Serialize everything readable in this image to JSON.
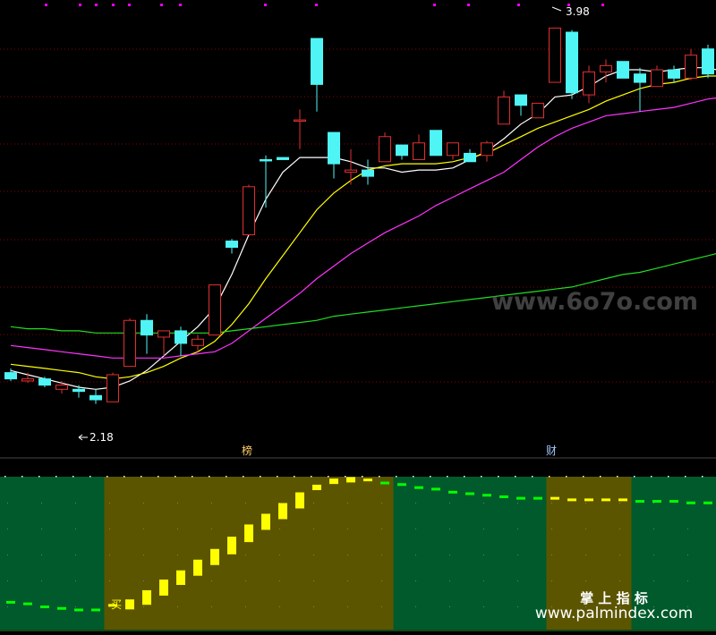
{
  "chart_data": [
    {
      "type": "candlestick",
      "title": "",
      "price_high_label": "3.98",
      "price_low_label": "2.18",
      "markers": [
        "榜",
        "财"
      ],
      "ylim": [
        2.05,
        4.05
      ],
      "candles": [
        {
          "o": 2.33,
          "h": 2.35,
          "l": 2.29,
          "c": 2.3,
          "up": false
        },
        {
          "o": 2.29,
          "h": 2.33,
          "l": 2.28,
          "c": 2.3,
          "up": true
        },
        {
          "o": 2.3,
          "h": 2.31,
          "l": 2.26,
          "c": 2.27,
          "up": false
        },
        {
          "o": 2.25,
          "h": 2.29,
          "l": 2.23,
          "c": 2.27,
          "up": true
        },
        {
          "o": 2.25,
          "h": 2.27,
          "l": 2.21,
          "c": 2.24,
          "up": false
        },
        {
          "o": 2.22,
          "h": 2.25,
          "l": 2.18,
          "c": 2.2,
          "up": false
        },
        {
          "o": 2.19,
          "h": 2.33,
          "l": 2.19,
          "c": 2.32,
          "up": true
        },
        {
          "o": 2.36,
          "h": 2.59,
          "l": 2.36,
          "c": 2.58,
          "up": true
        },
        {
          "o": 2.58,
          "h": 2.61,
          "l": 2.42,
          "c": 2.51,
          "up": false
        },
        {
          "o": 2.5,
          "h": 2.53,
          "l": 2.41,
          "c": 2.53,
          "up": true
        },
        {
          "o": 2.53,
          "h": 2.55,
          "l": 2.41,
          "c": 2.47,
          "up": false
        },
        {
          "o": 2.46,
          "h": 2.51,
          "l": 2.43,
          "c": 2.49,
          "up": true
        },
        {
          "o": 2.51,
          "h": 2.75,
          "l": 2.51,
          "c": 2.75,
          "up": true
        },
        {
          "o": 2.96,
          "h": 2.97,
          "l": 2.9,
          "c": 2.93,
          "up": false
        },
        {
          "o": 2.99,
          "h": 3.23,
          "l": 2.99,
          "c": 3.22,
          "up": true
        },
        {
          "o": 3.35,
          "h": 3.37,
          "l": 3.12,
          "c": 3.35,
          "up": false
        },
        {
          "o": 3.36,
          "h": 3.36,
          "l": 3.35,
          "c": 3.35,
          "up": false
        },
        {
          "o": 3.54,
          "h": 3.59,
          "l": 3.4,
          "c": 3.54,
          "up": true
        },
        {
          "o": 3.93,
          "h": 3.93,
          "l": 3.58,
          "c": 3.71,
          "up": false
        },
        {
          "o": 3.48,
          "h": 3.48,
          "l": 3.26,
          "c": 3.33,
          "up": false
        },
        {
          "o": 3.29,
          "h": 3.4,
          "l": 3.23,
          "c": 3.3,
          "up": true
        },
        {
          "o": 3.3,
          "h": 3.35,
          "l": 3.23,
          "c": 3.27,
          "up": false
        },
        {
          "o": 3.34,
          "h": 3.48,
          "l": 3.34,
          "c": 3.46,
          "up": true
        },
        {
          "o": 3.42,
          "h": 3.42,
          "l": 3.35,
          "c": 3.37,
          "up": false
        },
        {
          "o": 3.35,
          "h": 3.47,
          "l": 3.35,
          "c": 3.43,
          "up": true
        },
        {
          "o": 3.49,
          "h": 3.49,
          "l": 3.37,
          "c": 3.37,
          "up": false
        },
        {
          "o": 3.37,
          "h": 3.43,
          "l": 3.35,
          "c": 3.43,
          "up": true
        },
        {
          "o": 3.38,
          "h": 3.4,
          "l": 3.34,
          "c": 3.34,
          "up": false
        },
        {
          "o": 3.37,
          "h": 3.44,
          "l": 3.34,
          "c": 3.43,
          "up": true
        },
        {
          "o": 3.52,
          "h": 3.68,
          "l": 3.52,
          "c": 3.65,
          "up": true
        },
        {
          "o": 3.66,
          "h": 3.66,
          "l": 3.56,
          "c": 3.61,
          "up": false
        },
        {
          "o": 3.55,
          "h": 3.62,
          "l": 3.55,
          "c": 3.62,
          "up": true
        },
        {
          "o": 3.72,
          "h": 3.98,
          "l": 3.72,
          "c": 3.98,
          "up": true
        },
        {
          "o": 3.96,
          "h": 3.97,
          "l": 3.64,
          "c": 3.67,
          "up": false
        },
        {
          "o": 3.66,
          "h": 3.8,
          "l": 3.62,
          "c": 3.77,
          "up": true
        },
        {
          "o": 3.77,
          "h": 3.83,
          "l": 3.72,
          "c": 3.8,
          "up": true
        },
        {
          "o": 3.82,
          "h": 3.82,
          "l": 3.74,
          "c": 3.74,
          "up": false
        },
        {
          "o": 3.76,
          "h": 3.79,
          "l": 3.58,
          "c": 3.72,
          "up": false
        },
        {
          "o": 3.7,
          "h": 3.8,
          "l": 3.7,
          "c": 3.78,
          "up": true
        },
        {
          "o": 3.78,
          "h": 3.8,
          "l": 3.72,
          "c": 3.74,
          "up": false
        },
        {
          "o": 3.74,
          "h": 3.88,
          "l": 3.73,
          "c": 3.85,
          "up": true
        },
        {
          "o": 3.88,
          "h": 3.9,
          "l": 3.74,
          "c": 3.76,
          "up": false
        },
        {
          "o": 3.73,
          "h": 3.82,
          "l": 3.62,
          "c": 3.68,
          "up": false
        }
      ],
      "ma_lines": [
        {
          "color": "#ffffff",
          "values": [
            2.34,
            2.32,
            2.3,
            2.28,
            2.26,
            2.25,
            2.26,
            2.29,
            2.34,
            2.41,
            2.48,
            2.55,
            2.64,
            2.8,
            2.99,
            3.16,
            3.29,
            3.36,
            3.36,
            3.36,
            3.34,
            3.31,
            3.31,
            3.29,
            3.3,
            3.3,
            3.31,
            3.35,
            3.39,
            3.45,
            3.52,
            3.57,
            3.65,
            3.66,
            3.7,
            3.75,
            3.78,
            3.78,
            3.77,
            3.78,
            3.79,
            3.79,
            3.77
          ]
        },
        {
          "color": "#ffff00",
          "values": [
            2.37,
            2.36,
            2.35,
            2.34,
            2.33,
            2.31,
            2.3,
            2.31,
            2.33,
            2.36,
            2.4,
            2.43,
            2.48,
            2.56,
            2.66,
            2.78,
            2.89,
            3.0,
            3.11,
            3.19,
            3.25,
            3.3,
            3.32,
            3.33,
            3.33,
            3.33,
            3.34,
            3.36,
            3.38,
            3.42,
            3.46,
            3.5,
            3.53,
            3.56,
            3.59,
            3.63,
            3.66,
            3.69,
            3.71,
            3.72,
            3.74,
            3.75,
            3.75
          ]
        },
        {
          "color": "#ff33ff",
          "values": [
            2.46,
            2.45,
            2.44,
            2.43,
            2.42,
            2.41,
            2.4,
            2.4,
            2.4,
            2.4,
            2.41,
            2.42,
            2.43,
            2.47,
            2.53,
            2.59,
            2.65,
            2.71,
            2.78,
            2.84,
            2.9,
            2.95,
            3.0,
            3.04,
            3.08,
            3.13,
            3.17,
            3.21,
            3.25,
            3.29,
            3.35,
            3.41,
            3.46,
            3.5,
            3.53,
            3.56,
            3.57,
            3.58,
            3.59,
            3.6,
            3.62,
            3.64,
            3.65
          ]
        },
        {
          "color": "#22dd22",
          "values": [
            2.55,
            2.54,
            2.54,
            2.53,
            2.53,
            2.52,
            2.52,
            2.52,
            2.52,
            2.52,
            2.52,
            2.52,
            2.52,
            2.53,
            2.54,
            2.55,
            2.56,
            2.57,
            2.58,
            2.6,
            2.61,
            2.62,
            2.63,
            2.64,
            2.65,
            2.66,
            2.67,
            2.68,
            2.69,
            2.7,
            2.71,
            2.72,
            2.73,
            2.74,
            2.76,
            2.78,
            2.8,
            2.81,
            2.83,
            2.85,
            2.87,
            2.89,
            2.91
          ]
        }
      ]
    },
    {
      "type": "bar",
      "indicator_signal": "买",
      "ylim": [
        0,
        100
      ],
      "zones": [
        {
          "from": 0,
          "to": 5,
          "color": "#005a2b"
        },
        {
          "from": 6,
          "to": 22,
          "color": "#5c5500"
        },
        {
          "from": 23,
          "to": 31,
          "color": "#005a2b"
        },
        {
          "from": 32,
          "to": 36,
          "color": "#5c5500"
        },
        {
          "from": 37,
          "to": 42,
          "color": "#005a2b"
        }
      ],
      "values": [
        17,
        16,
        14,
        13,
        12,
        12,
        15,
        18,
        24,
        31,
        37,
        44,
        51,
        59,
        67,
        74,
        81,
        88,
        93,
        97,
        98,
        97,
        95,
        94,
        92,
        91,
        89,
        88,
        87,
        86,
        85,
        85,
        85,
        84,
        84,
        84,
        84,
        83,
        83,
        83,
        82,
        82,
        81
      ],
      "bar_colors": [
        "#00ff00",
        "#00ff00",
        "#00ff00",
        "#00ff00",
        "#00ff00",
        "#00ff00",
        "#ffff00",
        "#ffff00",
        "#ffff00",
        "#ffff00",
        "#ffff00",
        "#ffff00",
        "#ffff00",
        "#ffff00",
        "#ffff00",
        "#ffff00",
        "#ffff00",
        "#ffff00",
        "#ffff00",
        "#ffff00",
        "#ffff00",
        "#ffff00",
        "#00ff00",
        "#00ff00",
        "#00ff00",
        "#00ff00",
        "#00ff00",
        "#00ff00",
        "#00ff00",
        "#00ff00",
        "#00ff00",
        "#00ff00",
        "#ffff00",
        "#ffff00",
        "#ffff00",
        "#ffff00",
        "#ffff00",
        "#00ff00",
        "#00ff00",
        "#00ff00",
        "#00ff00",
        "#00ff00",
        "#00ff00"
      ]
    }
  ],
  "watermark_top": "www.6o7o.com",
  "watermark_bottom_cn": "掌 上 指 标",
  "watermark_bottom_url": "www.palmindex.com",
  "colors": {
    "up": "#e03030",
    "down": "#4ff5f5",
    "bg": "#000000",
    "grid": "#8b0000",
    "magenta_dots": "#ff00ff"
  }
}
